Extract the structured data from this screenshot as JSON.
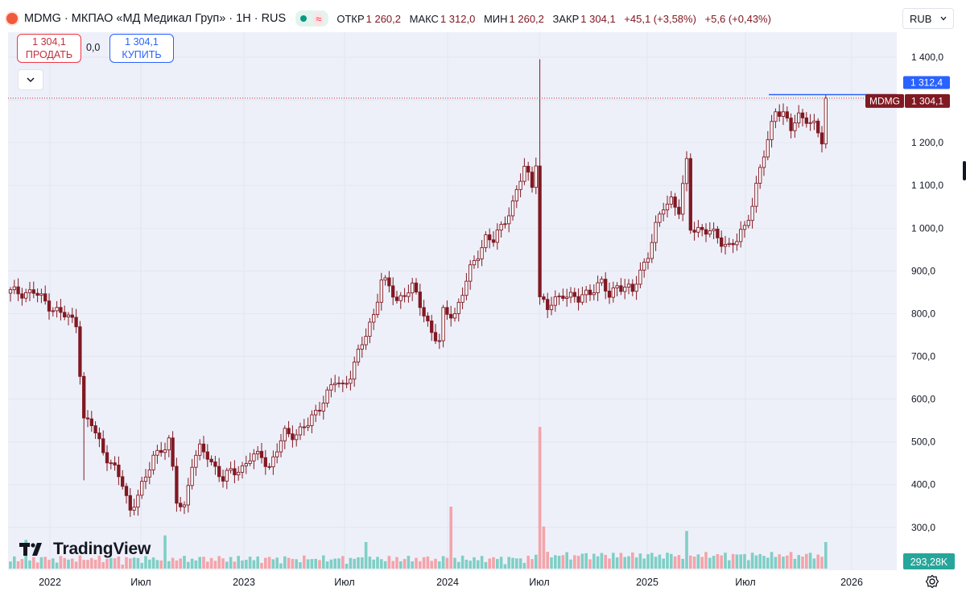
{
  "header": {
    "symbol_line": "MDMG · МКПАО «МД Медикал Груп» · 1Н · RUS",
    "wave_icon": "≈",
    "open_label": "ОТКР",
    "open_value": "1 260,2",
    "high_label": "МАКС",
    "high_value": "1 312,0",
    "low_label": "МИН",
    "low_value": "1 260,2",
    "close_label": "ЗАКР",
    "close_value": "1 304,1",
    "change_value": "+45,1 (+3,58%)",
    "change2_value": "+5,6 (+0,43%)"
  },
  "trade": {
    "sell_price": "1 304,1",
    "sell_label": "ПРОДАТЬ",
    "spread": "0,0",
    "buy_price": "1 304,1",
    "buy_label": "КУПИТЬ"
  },
  "currency": "RUB",
  "branding": "TradingView",
  "colors": {
    "up": "#801922",
    "down": "#801922",
    "volume_up": "#7fcfc6",
    "volume_down": "#f4a4aa",
    "background": "#eef0f9",
    "price_line": "#c2303a",
    "max_line": "#2962ff"
  },
  "chart_data": {
    "type": "candlestick",
    "timeframe": "1W",
    "y_ticks": [
      "1 400,0",
      "1 300,0",
      "1 200,0",
      "1 100,0",
      "1 000,0",
      "900,0",
      "800,0",
      "700,0",
      "600,0",
      "500,0",
      "400,0",
      "300,0"
    ],
    "y_tick_values": [
      1400,
      1300,
      1200,
      1100,
      1000,
      900,
      800,
      700,
      600,
      500,
      400,
      300
    ],
    "x_ticks": [
      "2022",
      "Июл",
      "2023",
      "Июл",
      "2024",
      "Июл",
      "2025",
      "Июл",
      "2026"
    ],
    "last_price_label": "1 304,1",
    "last_price_value": 1304.1,
    "symbol_tag": "MDMG",
    "high_label": "1 312,4",
    "high_value": 1312.4,
    "volume_label": "293,28K",
    "anchors": [
      [
        0,
        850
      ],
      [
        6,
        850
      ],
      [
        10,
        820
      ],
      [
        13,
        800
      ],
      [
        17,
        780
      ],
      [
        19,
        550
      ],
      [
        21,
        540
      ],
      [
        24,
        480
      ],
      [
        26,
        450
      ],
      [
        29,
        400
      ],
      [
        31,
        340
      ],
      [
        33,
        380
      ],
      [
        35,
        410
      ],
      [
        37,
        470
      ],
      [
        40,
        490
      ],
      [
        41,
        500
      ],
      [
        43,
        360
      ],
      [
        45,
        350
      ],
      [
        47,
        450
      ],
      [
        49,
        480
      ],
      [
        51,
        470
      ],
      [
        53,
        440
      ],
      [
        55,
        410
      ],
      [
        57,
        430
      ],
      [
        60,
        440
      ],
      [
        62,
        460
      ],
      [
        65,
        470
      ],
      [
        67,
        440
      ],
      [
        71,
        520
      ],
      [
        74,
        520
      ],
      [
        77,
        540
      ],
      [
        81,
        600
      ],
      [
        84,
        640
      ],
      [
        86,
        630
      ],
      [
        88,
        660
      ],
      [
        92,
        750
      ],
      [
        94,
        800
      ],
      [
        96,
        880
      ],
      [
        98,
        860
      ],
      [
        100,
        830
      ],
      [
        102,
        850
      ],
      [
        104,
        860
      ],
      [
        106,
        820
      ],
      [
        109,
        760
      ],
      [
        111,
        730
      ],
      [
        112,
        800
      ],
      [
        115,
        800
      ],
      [
        117,
        850
      ],
      [
        119,
        900
      ],
      [
        121,
        940
      ],
      [
        123,
        980
      ],
      [
        125,
        970
      ],
      [
        127,
        1000
      ],
      [
        130,
        1060
      ],
      [
        133,
        1140
      ],
      [
        135,
        1100
      ],
      [
        136,
        1160
      ],
      [
        137,
        840
      ],
      [
        139,
        810
      ],
      [
        141,
        830
      ],
      [
        143,
        850
      ],
      [
        145,
        840
      ],
      [
        147,
        830
      ],
      [
        149,
        850
      ],
      [
        151,
        860
      ],
      [
        153,
        870
      ],
      [
        155,
        840
      ],
      [
        157,
        870
      ],
      [
        159,
        860
      ],
      [
        161,
        850
      ],
      [
        163,
        900
      ],
      [
        165,
        940
      ],
      [
        167,
        1000
      ],
      [
        169,
        1050
      ],
      [
        171,
        1070
      ],
      [
        173,
        1040
      ],
      [
        175,
        1150
      ],
      [
        176,
        1000
      ],
      [
        178,
        1000
      ],
      [
        181,
        990
      ],
      [
        184,
        970
      ],
      [
        186,
        960
      ],
      [
        188,
        970
      ],
      [
        190,
        1000
      ],
      [
        192,
        1060
      ],
      [
        194,
        1140
      ],
      [
        196,
        1200
      ],
      [
        198,
        1280
      ],
      [
        200,
        1270
      ],
      [
        202,
        1230
      ],
      [
        204,
        1260
      ],
      [
        206,
        1260
      ],
      [
        208,
        1240
      ],
      [
        210,
        1200
      ],
      [
        211,
        1300
      ]
    ],
    "volume_spikes": [
      [
        4,
        65
      ],
      [
        40,
        75
      ],
      [
        92,
        60
      ],
      [
        114,
        140
      ],
      [
        137,
        320
      ],
      [
        138,
        95
      ],
      [
        175,
        85
      ],
      [
        211,
        60
      ]
    ]
  }
}
